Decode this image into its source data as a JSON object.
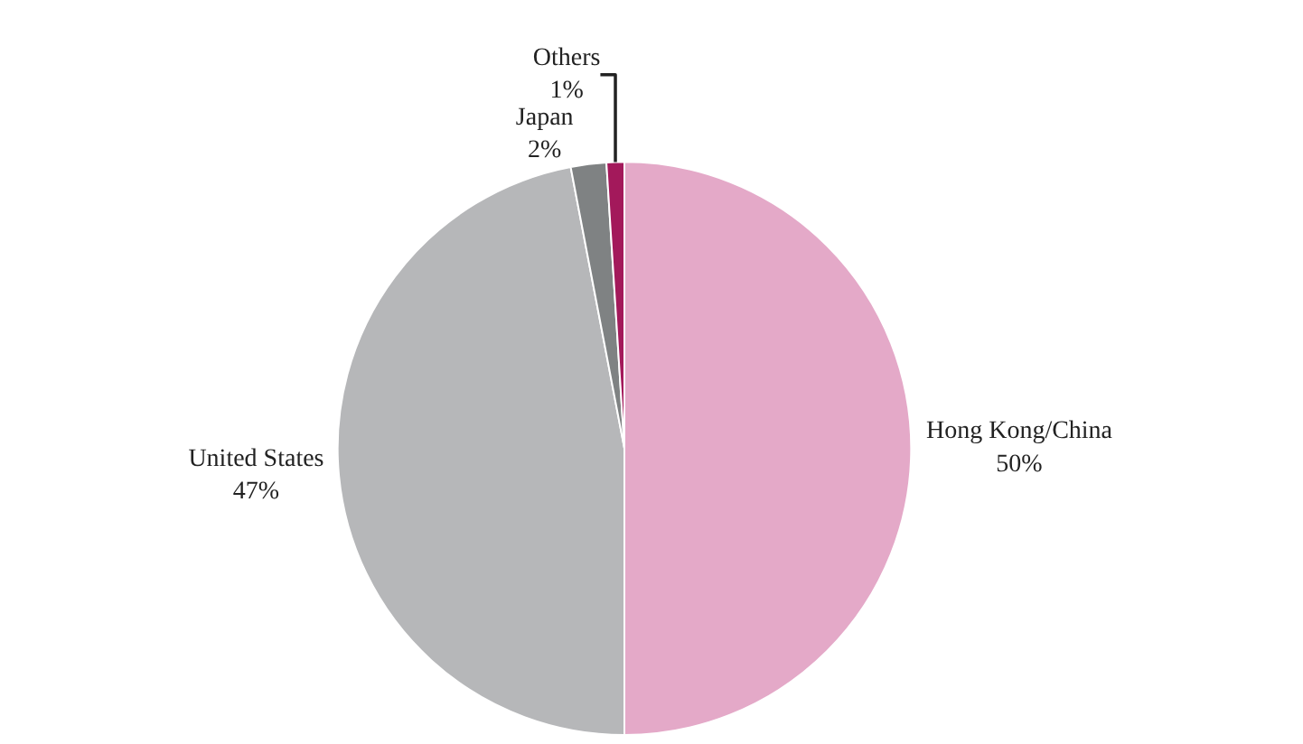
{
  "chart_data": {
    "type": "pie",
    "categories": [
      "Hong Kong/China",
      "United States",
      "Japan",
      "Others"
    ],
    "values": [
      50,
      47,
      2,
      1
    ],
    "value_labels": [
      "50%",
      "47%",
      "2%",
      "1%"
    ],
    "colors": [
      "#e4a9c8",
      "#b6b7b9",
      "#7f8283",
      "#a3195b"
    ],
    "legend": false
  }
}
